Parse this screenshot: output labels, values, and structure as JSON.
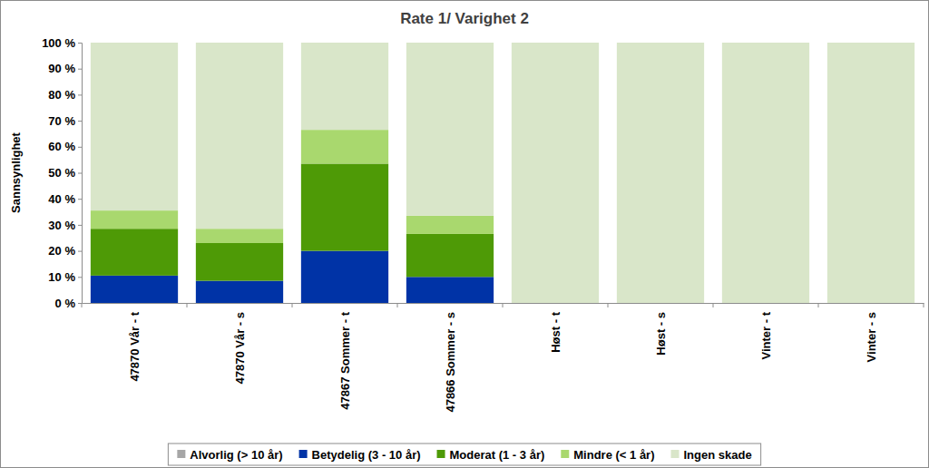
{
  "chart_data": {
    "type": "bar",
    "stacked": true,
    "grid": false,
    "legend": "bottom",
    "title": "Rate 1/ Varighet 2",
    "y_label": "Sannsynlighet",
    "categories": [
      "47870  Vår - t",
      "47870  Vår - s",
      "47867  Sommer - t",
      "47866  Sommer - s",
      "Høst - t",
      "Høst - s",
      "Vinter - t",
      "Vinter - s"
    ],
    "series": [
      {
        "name": "Alvorlig (> 10 år)",
        "color": "#a6a6a6",
        "values": [
          0,
          0,
          0,
          0,
          0,
          0,
          0,
          0
        ]
      },
      {
        "name": "Betydelig (3 - 10 år)",
        "color": "#0033a6",
        "values": [
          10.5,
          8.5,
          20,
          10,
          0,
          0,
          0,
          0
        ]
      },
      {
        "name": "Moderat (1 - 3 år)",
        "color": "#4e9a06",
        "values": [
          18,
          14.5,
          33.5,
          16.5,
          0,
          0,
          0,
          0
        ]
      },
      {
        "name": "Mindre (< 1 år)",
        "color": "#a9d86e",
        "values": [
          7,
          5.5,
          13,
          7,
          0,
          0,
          0,
          0
        ]
      },
      {
        "name": "Ingen skade",
        "color": "#d9e6c9",
        "values": [
          64.5,
          71.5,
          33.5,
          66.5,
          100,
          100,
          100,
          100
        ]
      }
    ],
    "ylim": [
      0,
      100
    ],
    "yticks": [
      {
        "value": 0,
        "label": "0 %"
      },
      {
        "value": 10,
        "label": "10 %"
      },
      {
        "value": 20,
        "label": "20 %"
      },
      {
        "value": 30,
        "label": "30 %"
      },
      {
        "value": 40,
        "label": "40 %"
      },
      {
        "value": 50,
        "label": "50 %"
      },
      {
        "value": 60,
        "label": "60 %"
      },
      {
        "value": 70,
        "label": "70 %"
      },
      {
        "value": 80,
        "label": "80 %"
      },
      {
        "value": 90,
        "label": "90 %"
      },
      {
        "value": 100,
        "label": "100 %"
      }
    ]
  }
}
